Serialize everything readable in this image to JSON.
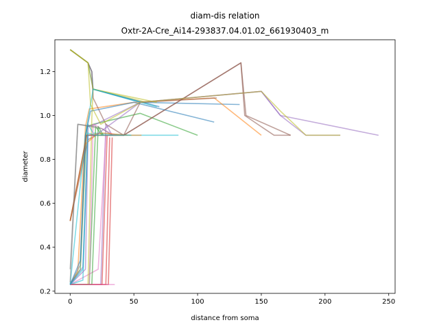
{
  "chart_data": {
    "type": "line",
    "title_line1": "diam-dis relation",
    "title_line2": "Oxtr-2A-Cre_Ai14-293837.04.01.02_661930403_m",
    "xlabel": "distance from soma",
    "ylabel": "diameter",
    "xlim": [
      -12,
      255
    ],
    "ylim": [
      0.19,
      1.345
    ],
    "xticks": [
      0,
      50,
      100,
      150,
      200,
      250
    ],
    "xtick_labels": [
      "0",
      "50",
      "100",
      "150",
      "200",
      "250"
    ],
    "yticks": [
      0.2,
      0.4,
      0.6,
      0.8,
      1.0,
      1.2
    ],
    "ytick_labels": [
      "0.2",
      "0.4",
      "0.6",
      "0.8",
      "1.0",
      "1.2"
    ],
    "grid": false,
    "series": [
      {
        "color": "#1f77b4",
        "points": [
          [
            0,
            1.3
          ],
          [
            14,
            1.24
          ],
          [
            17,
            1.2
          ],
          [
            18,
            1.12
          ],
          [
            55,
            1.06
          ],
          [
            133,
            1.05
          ]
        ]
      },
      {
        "color": "#ff7f0e",
        "points": [
          [
            0,
            0.23
          ],
          [
            6,
            0.29
          ],
          [
            12,
            0.95
          ],
          [
            15,
            1.03
          ],
          [
            50,
            1.06
          ],
          [
            113,
            1.08
          ],
          [
            150,
            0.91
          ]
        ]
      },
      {
        "color": "#2ca02c",
        "points": [
          [
            0,
            0.23
          ],
          [
            8,
            0.3
          ],
          [
            13,
            0.95
          ],
          [
            18,
            0.96
          ],
          [
            55,
            1.01
          ],
          [
            100,
            0.91
          ]
        ]
      },
      {
        "color": "#d62728",
        "points": [
          [
            0,
            0.23
          ],
          [
            25,
            0.23
          ],
          [
            29,
            0.91
          ],
          [
            32,
            0.91
          ]
        ]
      },
      {
        "color": "#9467bd",
        "points": [
          [
            0,
            0.23
          ],
          [
            24,
            0.23
          ],
          [
            28,
            0.96
          ],
          [
            33,
            0.91
          ]
        ]
      },
      {
        "color": "#8c564b",
        "points": [
          [
            0,
            0.52
          ],
          [
            14,
            0.89
          ],
          [
            20,
            0.91
          ],
          [
            42,
            0.91
          ],
          [
            134,
            1.24
          ],
          [
            138,
            1.0
          ],
          [
            173,
            0.91
          ]
        ]
      },
      {
        "color": "#e377c2",
        "points": [
          [
            0,
            0.23
          ],
          [
            22,
            0.3
          ],
          [
            28,
            0.91
          ],
          [
            36,
            0.91
          ]
        ]
      },
      {
        "color": "#7f7f7f",
        "points": [
          [
            0,
            0.23
          ],
          [
            8,
            0.32
          ],
          [
            12,
            0.91
          ],
          [
            20,
            0.91
          ]
        ]
      },
      {
        "color": "#bcbd22",
        "points": [
          [
            0,
            0.23
          ],
          [
            14,
            0.23
          ],
          [
            17,
            0.99
          ],
          [
            18,
            1.12
          ],
          [
            60,
            1.06
          ]
        ]
      },
      {
        "color": "#17becf",
        "points": [
          [
            0,
            0.23
          ],
          [
            10,
            0.25
          ],
          [
            14,
            0.96
          ],
          [
            18,
            0.92
          ],
          [
            48,
            0.91
          ],
          [
            85,
            0.91
          ]
        ]
      },
      {
        "color": "#1f77b4",
        "points": [
          [
            0,
            1.3
          ],
          [
            14,
            1.24
          ],
          [
            18,
            1.12
          ],
          [
            70,
            1.04
          ]
        ]
      },
      {
        "color": "#ff7f0e",
        "points": [
          [
            0,
            0.52
          ],
          [
            12,
            0.87
          ],
          [
            20,
            0.91
          ],
          [
            56,
            0.91
          ]
        ]
      },
      {
        "color": "#2ca02c",
        "points": [
          [
            0,
            0.23
          ],
          [
            15,
            0.23
          ],
          [
            20,
            0.95
          ],
          [
            25,
            0.91
          ]
        ]
      },
      {
        "color": "#d62728",
        "points": [
          [
            0,
            0.23
          ],
          [
            30,
            0.23
          ],
          [
            33,
            0.9
          ]
        ]
      },
      {
        "color": "#9467bd",
        "points": [
          [
            0,
            0.23
          ],
          [
            10,
            0.31
          ],
          [
            14,
            0.95
          ],
          [
            20,
            0.96
          ],
          [
            55,
            1.06
          ],
          [
            150,
            1.11
          ],
          [
            165,
            1.0
          ],
          [
            242,
            0.91
          ]
        ]
      },
      {
        "color": "#8c564b",
        "points": [
          [
            0,
            1.3
          ],
          [
            14,
            1.24
          ],
          [
            17,
            1.2
          ],
          [
            18,
            1.08
          ],
          [
            28,
            0.96
          ],
          [
            42,
            0.91
          ],
          [
            55,
            1.06
          ],
          [
            115,
            1.08
          ]
        ]
      },
      {
        "color": "#e377c2",
        "points": [
          [
            0,
            0.23
          ],
          [
            15,
            0.23
          ],
          [
            18,
            0.96
          ],
          [
            35,
            0.91
          ]
        ]
      },
      {
        "color": "#7f7f7f",
        "points": [
          [
            0,
            0.3
          ],
          [
            6,
            0.96
          ],
          [
            25,
            0.94
          ],
          [
            33,
            0.91
          ]
        ]
      },
      {
        "color": "#bcbd22",
        "points": [
          [
            0,
            1.3
          ],
          [
            14,
            1.24
          ],
          [
            18,
            1.12
          ],
          [
            68,
            1.06
          ]
        ]
      },
      {
        "color": "#17becf",
        "points": [
          [
            0,
            0.23
          ],
          [
            12,
            0.91
          ],
          [
            18,
            1.12
          ],
          [
            68,
            1.04
          ]
        ]
      },
      {
        "color": "#1f77b4",
        "points": [
          [
            0,
            0.23
          ],
          [
            8,
            0.34
          ],
          [
            12,
            0.91
          ],
          [
            16,
            1.02
          ],
          [
            50,
            1.06
          ],
          [
            113,
            0.97
          ]
        ]
      },
      {
        "color": "#ff7f0e",
        "points": [
          [
            0,
            0.52
          ],
          [
            13,
            0.91
          ],
          [
            26,
            0.92
          ],
          [
            45,
            0.91
          ]
        ]
      },
      {
        "color": "#2ca02c",
        "points": [
          [
            0,
            0.23
          ],
          [
            17,
            0.23
          ],
          [
            22,
            0.95
          ],
          [
            26,
            0.91
          ]
        ]
      },
      {
        "color": "#d62728",
        "points": [
          [
            0,
            0.23
          ],
          [
            28,
            0.23
          ],
          [
            31,
            0.9
          ]
        ]
      },
      {
        "color": "#9467bd",
        "points": [
          [
            0,
            0.23
          ],
          [
            12,
            0.3
          ],
          [
            14,
            0.91
          ],
          [
            20,
            0.91
          ],
          [
            55,
            1.06
          ],
          [
            150,
            1.11
          ],
          [
            165,
            1.0
          ],
          [
            185,
            0.91
          ],
          [
            212,
            0.91
          ]
        ]
      },
      {
        "color": "#8c564b",
        "points": [
          [
            0,
            0.52
          ],
          [
            13,
            0.91
          ],
          [
            20,
            0.91
          ],
          [
            42,
            0.91
          ],
          [
            134,
            1.24
          ],
          [
            137,
            1.0
          ],
          [
            160,
            0.91
          ],
          [
            173,
            0.91
          ]
        ]
      },
      {
        "color": "#e377c2",
        "points": [
          [
            0,
            0.23
          ],
          [
            35,
            0.23
          ]
        ]
      },
      {
        "color": "#7f7f7f",
        "points": [
          [
            0,
            0.24
          ],
          [
            6,
            0.96
          ],
          [
            20,
            0.95
          ]
        ]
      },
      {
        "color": "#bcbd22",
        "points": [
          [
            0,
            1.3
          ],
          [
            14,
            1.24
          ],
          [
            16,
            1.05
          ],
          [
            24,
            0.96
          ],
          [
            55,
            1.06
          ],
          [
            150,
            1.11
          ],
          [
            165,
            1.02
          ],
          [
            185,
            0.91
          ],
          [
            212,
            0.91
          ]
        ]
      },
      {
        "color": "#17becf",
        "points": [
          [
            0,
            0.23
          ],
          [
            10,
            0.3
          ],
          [
            14,
            0.92
          ],
          [
            20,
            0.91
          ],
          [
            48,
            0.91
          ]
        ]
      }
    ]
  }
}
